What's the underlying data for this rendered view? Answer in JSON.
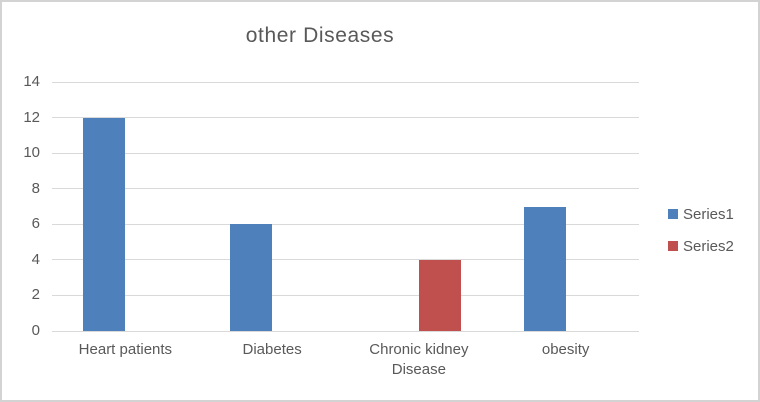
{
  "colors": {
    "series1": "#4E81BC",
    "series2": "#C0504D",
    "grid": "#D9D9D9",
    "text": "#595959",
    "frame": "#D3D3D3",
    "background": "#FFFFFF"
  },
  "chart_data": {
    "type": "bar",
    "title": "other Diseases",
    "categories": [
      "Heart patients",
      "Diabetes",
      "Chronic kidney Disease",
      "obesity"
    ],
    "series": [
      {
        "name": "Series1",
        "color": "#4E81BC",
        "values": [
          12,
          6,
          0,
          7
        ]
      },
      {
        "name": "Series2",
        "color": "#C0504D",
        "values": [
          0,
          0,
          4,
          0
        ]
      }
    ],
    "xlabel": "",
    "ylabel": "",
    "ylim": [
      0,
      14
    ],
    "yticks": [
      0,
      2,
      4,
      6,
      8,
      10,
      12,
      14
    ],
    "grid": true,
    "legend_position": "right"
  }
}
